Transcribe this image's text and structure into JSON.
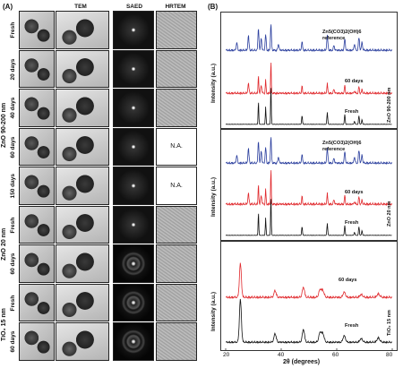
{
  "panel_a": {
    "label": "(A)",
    "columns": [
      "TEM",
      "SAED",
      "HRTEM"
    ],
    "groups": [
      {
        "label": "ZnO 90-200 nm",
        "rows": [
          "Fresh",
          "20 days",
          "40 days",
          "60 days",
          "150 days"
        ]
      },
      {
        "label": "ZnO 20 nm",
        "rows": [
          "Fresh",
          "60 days"
        ]
      },
      {
        "label": "TiO₂ 15 nm",
        "rows": [
          "Fresh",
          "60 days"
        ]
      }
    ],
    "na_text": "N.A."
  },
  "panel_b": {
    "label": "(B)",
    "ylabel": "Intensity (a.u.)",
    "xlabel": "2θ (degrees)",
    "xticks": [
      "20",
      "40",
      "60",
      "80"
    ],
    "subpanels": [
      {
        "side_label": "ZnO 90-200 nm",
        "traces": [
          "Zn5(CO3)2(OH)6 reference",
          "60 days",
          "Fresh"
        ]
      },
      {
        "side_label": "ZnO 20 nm",
        "traces": [
          "Zn5(CO3)2(OH)6 reference",
          "60 days",
          "Fresh"
        ]
      },
      {
        "side_label": "TiO₂ 15 nm",
        "traces": [
          "60 days",
          "Fresh"
        ]
      }
    ]
  },
  "colors": {
    "reference": "#2b3f9e",
    "aged": "#e0282c",
    "fresh": "#111111"
  }
}
